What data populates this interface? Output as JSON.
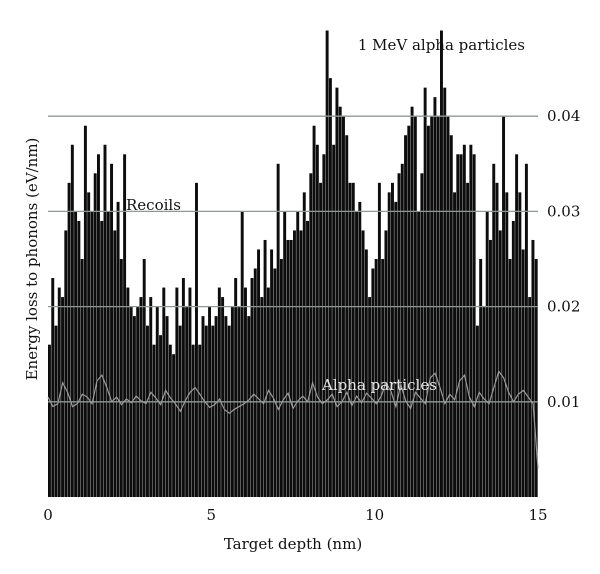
{
  "chart_data": {
    "type": "bar",
    "title": "1 MeV alpha particles",
    "xlabel": "Target depth (nm)",
    "ylabel": "Energy loss to phonons (eV/nm)",
    "xlim": [
      0,
      15
    ],
    "ylim": [
      0,
      0.05
    ],
    "x_ticks": [
      0,
      5,
      10,
      15
    ],
    "x_tick_labels": [
      "0",
      "5",
      "10",
      "15"
    ],
    "y_ticks": [
      0.01,
      0.02,
      0.03,
      0.04
    ],
    "y_tick_labels": [
      "0.01",
      "0.02",
      "0.03",
      "0.04"
    ],
    "y_axis_side": "right",
    "grid": "horizontal",
    "annotations": {
      "recoils": "Recoils",
      "alpha": "Alpha particles"
    },
    "colors": {
      "bars": "#0d0d0d",
      "alpha_line": "#9a9a9a",
      "grid": "#8a9a9a"
    },
    "series": [
      {
        "name": "Recoils",
        "style": "bars",
        "x": [
          0.05,
          0.15,
          0.25,
          0.35,
          0.45,
          0.55,
          0.65,
          0.75,
          0.85,
          0.95,
          1.05,
          1.15,
          1.25,
          1.35,
          1.45,
          1.55,
          1.65,
          1.75,
          1.85,
          1.95,
          2.05,
          2.15,
          2.25,
          2.35,
          2.45,
          2.55,
          2.65,
          2.75,
          2.85,
          2.95,
          3.05,
          3.15,
          3.25,
          3.35,
          3.45,
          3.55,
          3.65,
          3.75,
          3.85,
          3.95,
          4.05,
          4.15,
          4.25,
          4.35,
          4.45,
          4.55,
          4.65,
          4.75,
          4.85,
          4.95,
          5.05,
          5.15,
          5.25,
          5.35,
          5.45,
          5.55,
          5.65,
          5.75,
          5.85,
          5.95,
          6.05,
          6.15,
          6.25,
          6.35,
          6.45,
          6.55,
          6.65,
          6.75,
          6.85,
          6.95,
          7.05,
          7.15,
          7.25,
          7.35,
          7.45,
          7.55,
          7.65,
          7.75,
          7.85,
          7.95,
          8.05,
          8.15,
          8.25,
          8.35,
          8.45,
          8.55,
          8.65,
          8.75,
          8.85,
          8.95,
          9.05,
          9.15,
          9.25,
          9.35,
          9.45,
          9.55,
          9.65,
          9.75,
          9.85,
          9.95,
          10.05,
          10.15,
          10.25,
          10.35,
          10.45,
          10.55,
          10.65,
          10.75,
          10.85,
          10.95,
          11.05,
          11.15,
          11.25,
          11.35,
          11.45,
          11.55,
          11.65,
          11.75,
          11.85,
          11.95,
          12.05,
          12.15,
          12.25,
          12.35,
          12.45,
          12.55,
          12.65,
          12.75,
          12.85,
          12.95,
          13.05,
          13.15,
          13.25,
          13.35,
          13.45,
          13.55,
          13.65,
          13.75,
          13.85,
          13.95,
          14.05,
          14.15,
          14.25,
          14.35,
          14.45,
          14.55,
          14.65,
          14.75,
          14.85,
          14.95
        ],
        "values": [
          0.016,
          0.023,
          0.018,
          0.022,
          0.021,
          0.028,
          0.033,
          0.037,
          0.03,
          0.029,
          0.025,
          0.039,
          0.032,
          0.03,
          0.034,
          0.036,
          0.029,
          0.037,
          0.03,
          0.035,
          0.028,
          0.031,
          0.025,
          0.036,
          0.022,
          0.02,
          0.019,
          0.02,
          0.021,
          0.025,
          0.018,
          0.021,
          0.016,
          0.02,
          0.017,
          0.022,
          0.019,
          0.016,
          0.015,
          0.022,
          0.018,
          0.023,
          0.02,
          0.022,
          0.016,
          0.033,
          0.016,
          0.019,
          0.018,
          0.02,
          0.018,
          0.019,
          0.022,
          0.021,
          0.019,
          0.018,
          0.02,
          0.023,
          0.02,
          0.03,
          0.022,
          0.019,
          0.023,
          0.024,
          0.026,
          0.021,
          0.027,
          0.022,
          0.026,
          0.024,
          0.035,
          0.025,
          0.03,
          0.027,
          0.027,
          0.028,
          0.03,
          0.028,
          0.032,
          0.029,
          0.034,
          0.039,
          0.037,
          0.033,
          0.036,
          0.049,
          0.044,
          0.037,
          0.043,
          0.041,
          0.04,
          0.038,
          0.033,
          0.033,
          0.03,
          0.031,
          0.028,
          0.026,
          0.021,
          0.024,
          0.025,
          0.033,
          0.025,
          0.028,
          0.032,
          0.033,
          0.031,
          0.034,
          0.035,
          0.038,
          0.039,
          0.041,
          0.04,
          0.03,
          0.034,
          0.043,
          0.039,
          0.04,
          0.042,
          0.04,
          0.049,
          0.043,
          0.04,
          0.038,
          0.032,
          0.036,
          0.036,
          0.037,
          0.033,
          0.037,
          0.036,
          0.018,
          0.025,
          0.02,
          0.03,
          0.027,
          0.035,
          0.033,
          0.028,
          0.04,
          0.032,
          0.025,
          0.029,
          0.036,
          0.032,
          0.026,
          0.035,
          0.021,
          0.027,
          0.025
        ]
      },
      {
        "name": "Alpha particles",
        "style": "line",
        "x": [
          0.0,
          0.15,
          0.3,
          0.45,
          0.6,
          0.75,
          0.9,
          1.05,
          1.2,
          1.35,
          1.5,
          1.65,
          1.8,
          1.95,
          2.1,
          2.25,
          2.4,
          2.55,
          2.7,
          2.85,
          3.0,
          3.15,
          3.3,
          3.45,
          3.6,
          3.75,
          3.9,
          4.05,
          4.2,
          4.35,
          4.5,
          4.65,
          4.8,
          4.95,
          5.1,
          5.25,
          5.4,
          5.55,
          5.7,
          5.85,
          6.0,
          6.15,
          6.3,
          6.45,
          6.6,
          6.75,
          6.9,
          7.05,
          7.2,
          7.35,
          7.5,
          7.65,
          7.8,
          7.95,
          8.1,
          8.25,
          8.4,
          8.55,
          8.7,
          8.85,
          9.0,
          9.15,
          9.3,
          9.45,
          9.6,
          9.75,
          9.9,
          10.05,
          10.2,
          10.35,
          10.5,
          10.65,
          10.8,
          10.95,
          11.1,
          11.25,
          11.4,
          11.55,
          11.7,
          11.85,
          12.0,
          12.15,
          12.3,
          12.45,
          12.6,
          12.75,
          12.9,
          13.05,
          13.2,
          13.35,
          13.5,
          13.65,
          13.8,
          13.95,
          14.1,
          14.25,
          14.4,
          14.55,
          14.7,
          14.85,
          15.0
        ],
        "values": [
          0.0105,
          0.0095,
          0.0098,
          0.012,
          0.011,
          0.0095,
          0.0098,
          0.0108,
          0.0105,
          0.0098,
          0.0122,
          0.0128,
          0.0115,
          0.01,
          0.0105,
          0.0097,
          0.0103,
          0.0099,
          0.0106,
          0.0101,
          0.0098,
          0.011,
          0.0104,
          0.0097,
          0.0112,
          0.0104,
          0.0098,
          0.009,
          0.0101,
          0.011,
          0.0115,
          0.0108,
          0.01,
          0.0094,
          0.0097,
          0.0103,
          0.0092,
          0.0088,
          0.0092,
          0.0095,
          0.0098,
          0.0102,
          0.0108,
          0.0103,
          0.0098,
          0.0112,
          0.0104,
          0.0092,
          0.0102,
          0.0109,
          0.0093,
          0.0101,
          0.0106,
          0.01,
          0.012,
          0.0105,
          0.0098,
          0.0102,
          0.0108,
          0.0095,
          0.01,
          0.011,
          0.0096,
          0.0106,
          0.0099,
          0.0109,
          0.0104,
          0.0098,
          0.0106,
          0.012,
          0.0111,
          0.0095,
          0.0118,
          0.0101,
          0.0093,
          0.011,
          0.0104,
          0.0098,
          0.0125,
          0.013,
          0.0115,
          0.0098,
          0.0108,
          0.0102,
          0.0122,
          0.0128,
          0.0105,
          0.0095,
          0.011,
          0.0103,
          0.0098,
          0.0115,
          0.0132,
          0.0125,
          0.011,
          0.01,
          0.0108,
          0.0112,
          0.0105,
          0.0098,
          0.003
        ]
      }
    ]
  }
}
